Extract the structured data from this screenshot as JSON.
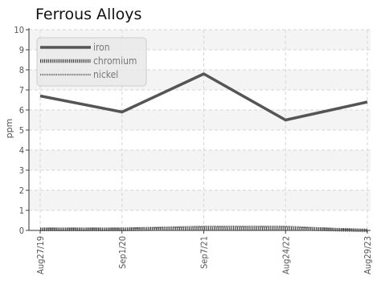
{
  "chart_data": {
    "type": "line",
    "title": "Ferrous Alloys",
    "xlabel": "",
    "ylabel": "ppm",
    "categories": [
      "Aug27/19",
      "Sep1/20",
      "Sep7/21",
      "Aug24/22",
      "Aug29/23"
    ],
    "ylim": [
      0,
      10
    ],
    "yticks": [
      0,
      1,
      2,
      3,
      4,
      5,
      6,
      7,
      8,
      9,
      10
    ],
    "grid": true,
    "legend_position": "top-left",
    "series": [
      {
        "name": "iron",
        "values": [
          6.7,
          5.9,
          7.8,
          5.5,
          6.4
        ],
        "style": "solid",
        "color": "#555555"
      },
      {
        "name": "chromium",
        "values": [
          0.05,
          0.05,
          0.1,
          0.1,
          0.0
        ],
        "style": "dotted",
        "color": "#444444"
      },
      {
        "name": "nickel",
        "values": [
          0.1,
          0.1,
          0.2,
          0.2,
          0.0
        ],
        "style": "dashed",
        "color": "#777777"
      }
    ]
  }
}
